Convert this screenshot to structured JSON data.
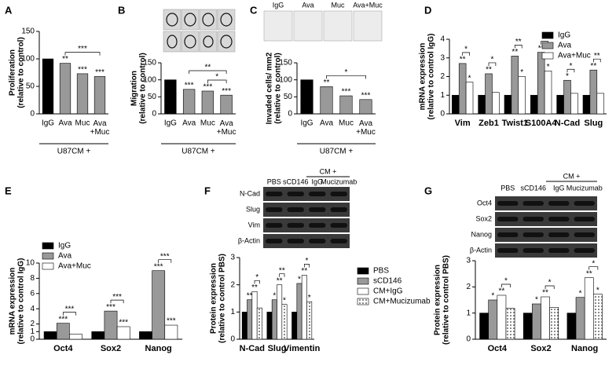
{
  "chart_data": [
    {
      "panel": "A",
      "type": "bar",
      "y_label": [
        "Proliferation",
        "(relative to control)"
      ],
      "categories": [
        "IgG",
        "Ava",
        "Muc",
        "Ava\n+Muc"
      ],
      "values": [
        100,
        92,
        73,
        68
      ],
      "colors": [
        "#000000",
        "#999999",
        "#999999",
        "#999999"
      ],
      "stars": [
        null,
        "**",
        "***",
        "***"
      ],
      "brackets": [
        {
          "text": "***",
          "from": 1,
          "to": 3
        }
      ],
      "x_label": "U87CM +",
      "ylim": [
        0,
        150
      ],
      "yticks": [
        0,
        50,
        100,
        150
      ]
    },
    {
      "panel": "B",
      "type": "bar",
      "y_label": [
        "Migration",
        "(relative to control)"
      ],
      "categories": [
        "IgG",
        "Ava",
        "Muc",
        "Ava\n+Muc"
      ],
      "values": [
        100,
        72,
        67,
        55
      ],
      "colors": [
        "#000000",
        "#999999",
        "#999999",
        "#999999"
      ],
      "stars": [
        null,
        "***",
        "***",
        "***"
      ],
      "brackets": [
        {
          "text": "*",
          "from": 2,
          "to": 3
        },
        {
          "text": "**",
          "from": 1,
          "to": 3
        }
      ],
      "x_label": "U87CM +",
      "ylim": [
        0,
        150
      ],
      "yticks": [
        0,
        50,
        100,
        150
      ]
    },
    {
      "panel": "C",
      "type": "bar",
      "y_label": [
        "Invaded cells/ mm2",
        "(relative to control)"
      ],
      "image_labels": [
        "IgG",
        "Ava",
        "Muc",
        "Ava+Muc"
      ],
      "categories": [
        "IgG",
        "Ava",
        "Muc",
        "Ava\n+Muc"
      ],
      "values": [
        100,
        80,
        53,
        42
      ],
      "colors": [
        "#000000",
        "#999999",
        "#999999",
        "#999999"
      ],
      "stars": [
        null,
        "**",
        "***",
        "***"
      ],
      "brackets": [
        {
          "text": "*",
          "from": 1,
          "to": 3
        }
      ],
      "x_label": "U87CM +",
      "ylim": [
        0,
        150
      ],
      "yticks": [
        0,
        50,
        100,
        150
      ]
    },
    {
      "panel": "D",
      "type": "grouped-bar",
      "y_label": [
        "mRNA expression",
        "(relative to control IgG)"
      ],
      "categories": [
        "Vim",
        "Zeb1",
        "Twist1",
        "S100A4",
        "N-Cad",
        "Slug"
      ],
      "series": [
        {
          "name": "IgG",
          "color": "#000000",
          "values": [
            1,
            1,
            1,
            1,
            1,
            1
          ],
          "stars": [
            null,
            null,
            null,
            null,
            null,
            null
          ]
        },
        {
          "name": "Ava",
          "color": "#999999",
          "values": [
            2.7,
            2.15,
            3.1,
            3.3,
            1.8,
            2.35
          ],
          "stars": [
            "**",
            "**",
            "**",
            "**",
            "*",
            "**"
          ]
        },
        {
          "name": "Ava+Muc",
          "color": "#ffffff",
          "values": [
            1.7,
            1.15,
            2.0,
            2.3,
            1.1,
            1.1
          ],
          "stars": [
            "*",
            null,
            "*",
            "*",
            null,
            null
          ]
        }
      ],
      "brackets": [
        {
          "text": "*",
          "category": 0,
          "from": 1,
          "to": 2
        },
        {
          "text": "*",
          "category": 1,
          "from": 1,
          "to": 2
        },
        {
          "text": "**",
          "category": 2,
          "from": 1,
          "to": 2
        },
        {
          "text": "*",
          "category": 3,
          "from": 1,
          "to": 2
        },
        {
          "text": "*",
          "category": 4,
          "from": 1,
          "to": 2
        },
        {
          "text": "**",
          "category": 5,
          "from": 1,
          "to": 2
        }
      ],
      "ylim": [
        0,
        4
      ],
      "yticks": [
        0,
        1,
        2,
        3,
        4
      ],
      "legend": "upper right"
    },
    {
      "panel": "E",
      "type": "grouped-bar",
      "y_label": [
        "mRNA expression",
        "(relative to control IgG)"
      ],
      "categories": [
        "Oct4",
        "Sox2",
        "Nanog"
      ],
      "series": [
        {
          "name": "IgG",
          "color": "#000000",
          "values": [
            1,
            1,
            1
          ],
          "stars": [
            null,
            null,
            null
          ]
        },
        {
          "name": "Ava",
          "color": "#999999",
          "values": [
            2.1,
            3.7,
            9.0
          ],
          "stars": [
            "***",
            "***",
            "***"
          ]
        },
        {
          "name": "Ava+Muc",
          "color": "#ffffff",
          "values": [
            0.65,
            1.65,
            1.85
          ],
          "stars": [
            null,
            "***",
            "***"
          ]
        }
      ],
      "brackets": [
        {
          "text": "***",
          "category": 0,
          "from": 1,
          "to": 2
        },
        {
          "text": "***",
          "category": 1,
          "from": 1,
          "to": 2
        },
        {
          "text": "***",
          "category": 2,
          "from": 1,
          "to": 2
        }
      ],
      "ylim": [
        0,
        10
      ],
      "yticks": [
        0,
        1,
        2,
        4,
        6,
        8,
        10
      ],
      "legend": "upper left"
    },
    {
      "panel": "F",
      "type": "grouped-bar",
      "y_label": [
        "Protein expression",
        "(relative to control PBS)"
      ],
      "blot": {
        "group": "CM +",
        "lanes": [
          "PBS",
          "sCD146",
          "IgG",
          "Mucizumab"
        ],
        "rows": [
          "N-Cad",
          "Slug",
          "Vim",
          "β-Actin"
        ]
      },
      "categories": [
        "N-Cad",
        "Slug",
        "Vimentin"
      ],
      "series": [
        {
          "name": "PBS",
          "color": "#000000",
          "values": [
            1,
            1,
            1
          ],
          "stars": [
            null,
            null,
            null
          ]
        },
        {
          "name": "sCD146",
          "color": "#999999",
          "values": [
            1.45,
            1.45,
            2.05
          ],
          "stars": [
            "**",
            "*",
            "*"
          ]
        },
        {
          "name": "CM+IgG",
          "color": "#ffffff",
          "values": [
            1.75,
            2.0,
            2.35
          ],
          "stars": [
            "**",
            "**",
            "**"
          ]
        },
        {
          "name": "CM+Mucizumab",
          "color": "#ffffff",
          "pattern": "dots",
          "values": [
            1.15,
            1.28,
            1.38
          ],
          "stars": [
            null,
            "*",
            "*"
          ]
        }
      ],
      "brackets": [
        {
          "text": "*",
          "category": 0,
          "from": 2,
          "to": 3
        },
        {
          "text": "**",
          "category": 1,
          "from": 2,
          "to": 3
        },
        {
          "text": "*",
          "category": 2,
          "from": 2,
          "to": 3
        }
      ],
      "ylim": [
        0,
        3
      ],
      "yticks": [
        0,
        1,
        2,
        3
      ],
      "legend": "right"
    },
    {
      "panel": "G",
      "type": "grouped-bar",
      "y_label": [
        "Protein expression",
        "(relative to control PBS)"
      ],
      "blot": {
        "group": "CM +",
        "lanes": [
          "PBS",
          "sCD146",
          "IgG",
          "Mucizumab"
        ],
        "rows": [
          "Oct4",
          "Sox2",
          "Nanog",
          "β-Actin"
        ]
      },
      "categories": [
        "Oct4",
        "Sox2",
        "Nanog"
      ],
      "series": [
        {
          "name": "PBS",
          "color": "#000000",
          "values": [
            1,
            1,
            1
          ],
          "stars": [
            null,
            null,
            null
          ]
        },
        {
          "name": "sCD146",
          "color": "#999999",
          "values": [
            1.5,
            1.35,
            1.6
          ],
          "stars": [
            "*",
            "*",
            "*"
          ]
        },
        {
          "name": "CM+IgG",
          "color": "#ffffff",
          "values": [
            1.68,
            1.62,
            2.35
          ],
          "stars": [
            "**",
            "**",
            "**"
          ]
        },
        {
          "name": "CM+Mucizumab",
          "color": "#ffffff",
          "pattern": "dots",
          "values": [
            1.18,
            1.22,
            1.72
          ],
          "stars": [
            null,
            null,
            "*"
          ]
        }
      ],
      "brackets": [
        {
          "text": "*",
          "category": 0,
          "from": 2,
          "to": 3
        },
        {
          "text": "*",
          "category": 1,
          "from": 2,
          "to": 3
        },
        {
          "text": "*",
          "category": 2,
          "from": 2,
          "to": 3
        }
      ],
      "ylim": [
        0,
        3
      ],
      "yticks": [
        0,
        1,
        2,
        3
      ]
    }
  ]
}
